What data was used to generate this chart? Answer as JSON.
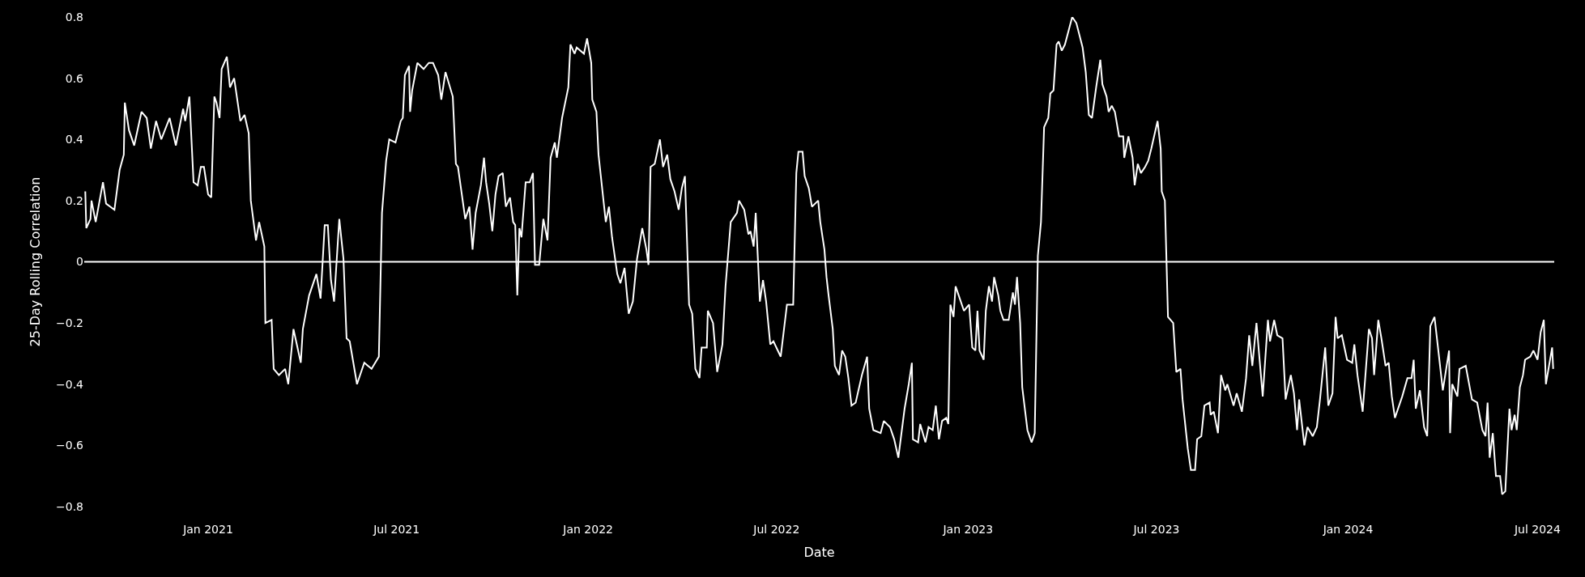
{
  "chart_data": {
    "type": "line",
    "xlabel": "Date",
    "ylabel": "25-Day Rolling Correlation",
    "grid": false,
    "legend": false,
    "marker": "none",
    "line_style": "solid",
    "xlim": [
      "2020-09-04",
      "2024-07-17"
    ],
    "xticks": [
      {
        "value": "2021-01-01",
        "label": "Jan 2021"
      },
      {
        "value": "2021-07-01",
        "label": "Jul 2021"
      },
      {
        "value": "2022-01-01",
        "label": "Jan 2022"
      },
      {
        "value": "2022-07-01",
        "label": "Jul 2022"
      },
      {
        "value": "2023-01-01",
        "label": "Jan 2023"
      },
      {
        "value": "2023-07-01",
        "label": "Jul 2023"
      },
      {
        "value": "2024-01-01",
        "label": "Jan 2024"
      },
      {
        "value": "2024-07-01",
        "label": "Jul 2024"
      }
    ],
    "ylim": [
      -0.8,
      0.8
    ],
    "yticks": [
      -0.8,
      -0.6,
      -0.4,
      -0.2,
      0,
      0.2,
      0.4,
      0.6,
      0.8
    ],
    "ref_lines": [
      {
        "axis": "y",
        "value": 0,
        "color": "#ffffff"
      }
    ],
    "x": [
      "2020-09-05",
      "2020-09-06",
      "2020-09-10",
      "2020-09-11",
      "2020-09-15",
      "2020-09-22",
      "2020-09-25",
      "2020-10-03",
      "2020-10-08",
      "2020-10-12",
      "2020-10-13",
      "2020-10-17",
      "2020-10-22",
      "2020-10-29",
      "2020-11-03",
      "2020-11-07",
      "2020-11-12",
      "2020-11-17",
      "2020-11-25",
      "2020-12-01",
      "2020-12-08",
      "2020-12-10",
      "2020-12-14",
      "2020-12-16",
      "2020-12-18",
      "2020-12-22",
      "2020-12-25",
      "2020-12-28",
      "2021-01-01",
      "2021-01-04",
      "2021-01-07",
      "2021-01-09",
      "2021-01-12",
      "2021-01-14",
      "2021-01-19",
      "2021-01-22",
      "2021-01-26",
      "2021-02-01",
      "2021-02-05",
      "2021-02-09",
      "2021-02-11",
      "2021-02-16",
      "2021-02-19",
      "2021-02-24",
      "2021-02-25",
      "2021-03-03",
      "2021-03-05",
      "2021-03-10",
      "2021-03-16",
      "2021-03-19",
      "2021-03-24",
      "2021-03-31",
      "2021-04-02",
      "2021-04-08",
      "2021-04-15",
      "2021-04-19",
      "2021-04-23",
      "2021-04-26",
      "2021-04-29",
      "2021-05-02",
      "2021-05-07",
      "2021-05-11",
      "2021-05-14",
      "2021-05-17",
      "2021-05-24",
      "2021-05-31",
      "2021-06-07",
      "2021-06-14",
      "2021-06-17",
      "2021-06-21",
      "2021-06-24",
      "2021-06-30",
      "2021-07-05",
      "2021-07-07",
      "2021-07-09",
      "2021-07-13",
      "2021-07-14",
      "2021-07-16",
      "2021-07-21",
      "2021-07-27",
      "2021-08-01",
      "2021-08-05",
      "2021-08-10",
      "2021-08-13",
      "2021-08-17",
      "2021-08-24",
      "2021-08-27",
      "2021-08-29",
      "2021-09-05",
      "2021-09-09",
      "2021-09-12",
      "2021-09-15",
      "2021-09-20",
      "2021-09-23",
      "2021-09-25",
      "2021-09-28",
      "2021-10-01",
      "2021-10-04",
      "2021-10-07",
      "2021-10-11",
      "2021-10-14",
      "2021-10-18",
      "2021-10-21",
      "2021-10-23",
      "2021-10-25",
      "2021-10-27",
      "2021-10-29",
      "2021-11-02",
      "2021-11-06",
      "2021-11-09",
      "2021-11-11",
      "2021-11-15",
      "2021-11-19",
      "2021-11-23",
      "2021-11-26",
      "2021-11-30",
      "2021-12-02",
      "2021-12-07",
      "2021-12-13",
      "2021-12-15",
      "2021-12-19",
      "2021-12-21",
      "2021-12-28",
      "2021-12-31",
      "2022-01-04",
      "2022-01-05",
      "2022-01-09",
      "2022-01-11",
      "2022-01-18",
      "2022-01-21",
      "2022-01-24",
      "2022-01-29",
      "2022-02-01",
      "2022-02-05",
      "2022-02-09",
      "2022-02-13",
      "2022-02-17",
      "2022-02-22",
      "2022-02-26",
      "2022-02-28",
      "2022-03-02",
      "2022-03-06",
      "2022-03-11",
      "2022-03-14",
      "2022-03-18",
      "2022-03-21",
      "2022-03-25",
      "2022-03-29",
      "2022-04-01",
      "2022-04-04",
      "2022-04-08",
      "2022-04-11",
      "2022-04-14",
      "2022-04-18",
      "2022-04-20",
      "2022-04-25",
      "2022-04-26",
      "2022-05-01",
      "2022-05-05",
      "2022-05-10",
      "2022-05-13",
      "2022-05-18",
      "2022-05-24",
      "2022-05-26",
      "2022-05-31",
      "2022-06-04",
      "2022-06-06",
      "2022-06-09",
      "2022-06-11",
      "2022-06-15",
      "2022-06-18",
      "2022-06-21",
      "2022-06-25",
      "2022-06-28",
      "2022-07-05",
      "2022-07-11",
      "2022-07-17",
      "2022-07-20",
      "2022-07-22",
      "2022-07-26",
      "2022-07-28",
      "2022-08-01",
      "2022-08-04",
      "2022-08-10",
      "2022-08-12",
      "2022-08-16",
      "2022-08-18",
      "2022-08-20",
      "2022-08-24",
      "2022-08-26",
      "2022-08-30",
      "2022-09-02",
      "2022-09-05",
      "2022-09-08",
      "2022-09-11",
      "2022-09-15",
      "2022-09-21",
      "2022-09-26",
      "2022-09-28",
      "2022-10-02",
      "2022-10-09",
      "2022-10-12",
      "2022-10-18",
      "2022-10-22",
      "2022-10-26",
      "2022-11-01",
      "2022-11-05",
      "2022-11-08",
      "2022-11-09",
      "2022-11-14",
      "2022-11-16",
      "2022-11-21",
      "2022-11-24",
      "2022-11-28",
      "2022-12-01",
      "2022-12-04",
      "2022-12-07",
      "2022-12-11",
      "2022-12-13",
      "2022-12-15",
      "2022-12-18",
      "2022-12-20",
      "2022-12-23",
      "2022-12-28",
      "2023-01-02",
      "2023-01-05",
      "2023-01-08",
      "2023-01-10",
      "2023-01-12",
      "2023-01-16",
      "2023-01-18",
      "2023-01-21",
      "2023-01-24",
      "2023-01-26",
      "2023-01-30",
      "2023-02-01",
      "2023-02-04",
      "2023-02-09",
      "2023-02-13",
      "2023-02-15",
      "2023-02-17",
      "2023-02-20",
      "2023-02-22",
      "2023-02-27",
      "2023-03-03",
      "2023-03-06",
      "2023-03-09",
      "2023-03-12",
      "2023-03-15",
      "2023-03-19",
      "2023-03-21",
      "2023-03-24",
      "2023-03-27",
      "2023-03-29",
      "2023-04-01",
      "2023-04-04",
      "2023-04-11",
      "2023-04-15",
      "2023-04-21",
      "2023-04-24",
      "2023-04-27",
      "2023-04-30",
      "2023-05-04",
      "2023-05-08",
      "2023-05-10",
      "2023-05-14",
      "2023-05-16",
      "2023-05-19",
      "2023-05-22",
      "2023-05-26",
      "2023-05-30",
      "2023-05-31",
      "2023-06-04",
      "2023-06-08",
      "2023-06-10",
      "2023-06-13",
      "2023-06-16",
      "2023-06-20",
      "2023-06-23",
      "2023-06-26",
      "2023-07-02",
      "2023-07-05",
      "2023-07-06",
      "2023-07-09",
      "2023-07-12",
      "2023-07-17",
      "2023-07-20",
      "2023-07-24",
      "2023-07-26",
      "2023-07-31",
      "2023-08-03",
      "2023-08-07",
      "2023-08-09",
      "2023-08-13",
      "2023-08-16",
      "2023-08-21",
      "2023-08-22",
      "2023-08-25",
      "2023-08-29",
      "2023-09-01",
      "2023-09-05",
      "2023-09-07",
      "2023-09-13",
      "2023-09-16",
      "2023-09-21",
      "2023-09-25",
      "2023-09-28",
      "2023-10-01",
      "2023-10-05",
      "2023-10-11",
      "2023-10-16",
      "2023-10-18",
      "2023-10-22",
      "2023-10-25",
      "2023-10-30",
      "2023-11-02",
      "2023-11-07",
      "2023-11-10",
      "2023-11-13",
      "2023-11-15",
      "2023-11-20",
      "2023-11-23",
      "2023-11-28",
      "2023-12-02",
      "2023-12-05",
      "2023-12-10",
      "2023-12-13",
      "2023-12-17",
      "2023-12-20",
      "2023-12-22",
      "2023-12-26",
      "2023-12-31",
      "2024-01-05",
      "2024-01-07",
      "2024-01-10",
      "2024-01-15",
      "2024-01-21",
      "2024-01-24",
      "2024-01-26",
      "2024-01-30",
      "2024-02-02",
      "2024-02-06",
      "2024-02-09",
      "2024-02-12",
      "2024-02-15",
      "2024-02-22",
      "2024-02-27",
      "2024-03-02",
      "2024-03-04",
      "2024-03-06",
      "2024-03-10",
      "2024-03-14",
      "2024-03-17",
      "2024-03-20",
      "2024-03-24",
      "2024-03-28",
      "2024-04-01",
      "2024-04-07",
      "2024-04-08",
      "2024-04-10",
      "2024-04-15",
      "2024-04-17",
      "2024-04-23",
      "2024-04-29",
      "2024-05-04",
      "2024-05-09",
      "2024-05-12",
      "2024-05-14",
      "2024-05-16",
      "2024-05-19",
      "2024-05-22",
      "2024-05-26",
      "2024-05-28",
      "2024-05-31",
      "2024-06-04",
      "2024-06-06",
      "2024-06-09",
      "2024-06-11",
      "2024-06-14",
      "2024-06-17",
      "2024-06-19",
      "2024-06-24",
      "2024-06-27",
      "2024-07-01",
      "2024-07-04",
      "2024-07-07",
      "2024-07-09",
      "2024-07-15",
      "2024-07-16"
    ],
    "series": [
      {
        "color": "#ffffff",
        "values": [
          0.23,
          0.11,
          0.14,
          0.2,
          0.13,
          0.26,
          0.19,
          0.17,
          0.3,
          0.35,
          0.52,
          0.43,
          0.38,
          0.49,
          0.47,
          0.37,
          0.46,
          0.4,
          0.47,
          0.38,
          0.5,
          0.46,
          0.54,
          0.4,
          0.26,
          0.25,
          0.31,
          0.31,
          0.22,
          0.21,
          0.54,
          0.52,
          0.47,
          0.63,
          0.67,
          0.57,
          0.6,
          0.46,
          0.48,
          0.42,
          0.2,
          0.07,
          0.13,
          0.05,
          -0.2,
          -0.19,
          -0.35,
          -0.37,
          -0.35,
          -0.4,
          -0.22,
          -0.33,
          -0.22,
          -0.11,
          -0.04,
          -0.12,
          0.12,
          0.12,
          -0.06,
          -0.13,
          0.14,
          0.01,
          -0.25,
          -0.26,
          -0.4,
          -0.33,
          -0.35,
          -0.31,
          0.16,
          0.33,
          0.4,
          0.39,
          0.46,
          0.47,
          0.61,
          0.64,
          0.49,
          0.56,
          0.65,
          0.63,
          0.65,
          0.65,
          0.61,
          0.53,
          0.62,
          0.54,
          0.32,
          0.31,
          0.14,
          0.18,
          0.04,
          0.16,
          0.25,
          0.34,
          0.26,
          0.19,
          0.1,
          0.22,
          0.28,
          0.29,
          0.18,
          0.21,
          0.13,
          0.12,
          -0.11,
          0.11,
          0.08,
          0.26,
          0.26,
          0.29,
          -0.01,
          -0.01,
          0.14,
          0.07,
          0.34,
          0.39,
          0.34,
          0.47,
          0.57,
          0.71,
          0.68,
          0.7,
          0.68,
          0.73,
          0.65,
          0.53,
          0.49,
          0.35,
          0.13,
          0.18,
          0.08,
          -0.04,
          -0.07,
          -0.02,
          -0.17,
          -0.13,
          0.01,
          0.11,
          0.04,
          -0.01,
          0.31,
          0.32,
          0.4,
          0.31,
          0.35,
          0.27,
          0.23,
          0.17,
          0.24,
          0.28,
          -0.14,
          -0.17,
          -0.35,
          -0.38,
          -0.28,
          -0.28,
          -0.16,
          -0.2,
          -0.36,
          -0.27,
          -0.08,
          0.13,
          0.16,
          0.2,
          0.17,
          0.09,
          0.1,
          0.05,
          0.16,
          -0.13,
          -0.06,
          -0.13,
          -0.27,
          -0.26,
          -0.31,
          -0.14,
          -0.14,
          0.29,
          0.36,
          0.36,
          0.28,
          0.24,
          0.18,
          0.2,
          0.13,
          0.04,
          -0.05,
          -0.11,
          -0.22,
          -0.34,
          -0.37,
          -0.29,
          -0.31,
          -0.38,
          -0.47,
          -0.46,
          -0.37,
          -0.31,
          -0.48,
          -0.55,
          -0.56,
          -0.52,
          -0.54,
          -0.58,
          -0.64,
          -0.48,
          -0.4,
          -0.33,
          -0.58,
          -0.59,
          -0.53,
          -0.59,
          -0.54,
          -0.55,
          -0.47,
          -0.58,
          -0.52,
          -0.51,
          -0.53,
          -0.14,
          -0.18,
          -0.08,
          -0.11,
          -0.16,
          -0.14,
          -0.28,
          -0.29,
          -0.16,
          -0.29,
          -0.32,
          -0.16,
          -0.08,
          -0.13,
          -0.05,
          -0.11,
          -0.16,
          -0.19,
          -0.19,
          -0.1,
          -0.14,
          -0.05,
          -0.2,
          -0.41,
          -0.55,
          -0.59,
          -0.56,
          0.02,
          0.13,
          0.44,
          0.47,
          0.55,
          0.56,
          0.71,
          0.72,
          0.69,
          0.71,
          0.8,
          0.78,
          0.7,
          0.62,
          0.48,
          0.47,
          0.57,
          0.66,
          0.58,
          0.54,
          0.49,
          0.51,
          0.49,
          0.41,
          0.41,
          0.34,
          0.41,
          0.34,
          0.25,
          0.32,
          0.29,
          0.31,
          0.33,
          0.37,
          0.46,
          0.37,
          0.23,
          0.2,
          -0.18,
          -0.2,
          -0.36,
          -0.35,
          -0.45,
          -0.61,
          -0.68,
          -0.68,
          -0.58,
          -0.57,
          -0.47,
          -0.46,
          -0.5,
          -0.49,
          -0.56,
          -0.37,
          -0.42,
          -0.4,
          -0.47,
          -0.43,
          -0.49,
          -0.38,
          -0.24,
          -0.34,
          -0.2,
          -0.44,
          -0.19,
          -0.26,
          -0.19,
          -0.24,
          -0.25,
          -0.45,
          -0.37,
          -0.43,
          -0.55,
          -0.45,
          -0.6,
          -0.54,
          -0.57,
          -0.54,
          -0.45,
          -0.28,
          -0.47,
          -0.43,
          -0.18,
          -0.25,
          -0.24,
          -0.32,
          -0.33,
          -0.27,
          -0.37,
          -0.49,
          -0.22,
          -0.25,
          -0.37,
          -0.19,
          -0.25,
          -0.34,
          -0.33,
          -0.44,
          -0.51,
          -0.44,
          -0.38,
          -0.38,
          -0.32,
          -0.48,
          -0.42,
          -0.54,
          -0.57,
          -0.21,
          -0.18,
          -0.3,
          -0.42,
          -0.29,
          -0.56,
          -0.4,
          -0.44,
          -0.35,
          -0.34,
          -0.45,
          -0.46,
          -0.55,
          -0.57,
          -0.46,
          -0.64,
          -0.56,
          -0.7,
          -0.7,
          -0.76,
          -0.75,
          -0.48,
          -0.55,
          -0.5,
          -0.55,
          -0.41,
          -0.37,
          -0.32,
          -0.31,
          -0.29,
          -0.32,
          -0.23,
          -0.19,
          -0.4,
          -0.28,
          -0.35
        ]
      }
    ]
  }
}
